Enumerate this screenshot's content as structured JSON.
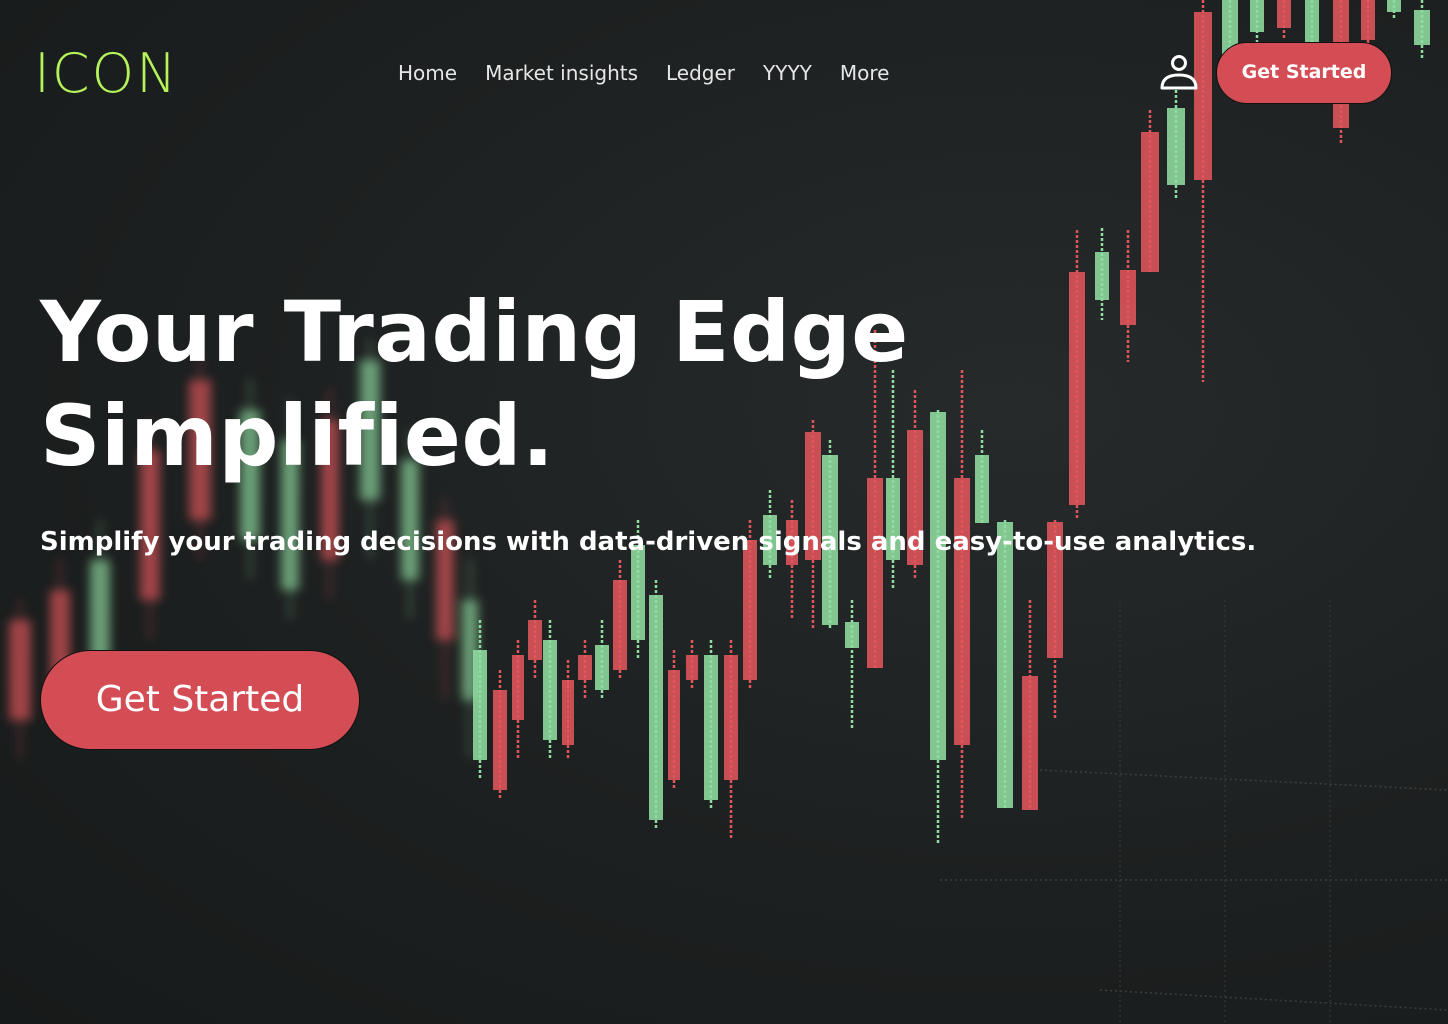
{
  "brand": {
    "logo_text": "ICON",
    "logo_color": "#b6f25a"
  },
  "nav": {
    "items": [
      {
        "label": "Home"
      },
      {
        "label": "Market insights"
      },
      {
        "label": "Ledger"
      },
      {
        "label": "YYYY"
      },
      {
        "label": "More"
      }
    ]
  },
  "header": {
    "user_icon": "user-icon",
    "cta_label": "Get Started"
  },
  "hero": {
    "headline_line1": "Your Trading Edge",
    "headline_line2": "Simplified.",
    "subheadline": "Simplify your trading decisions with data-driven signals and easy-to-use analytics.",
    "cta_label": "Get Started"
  },
  "colors": {
    "accent_red": "#d44d55",
    "candle_red": "#e0555b",
    "candle_green": "#8fdca0",
    "background": "#1c1f1f"
  },
  "background": {
    "image": "candlestick-chart-background"
  }
}
